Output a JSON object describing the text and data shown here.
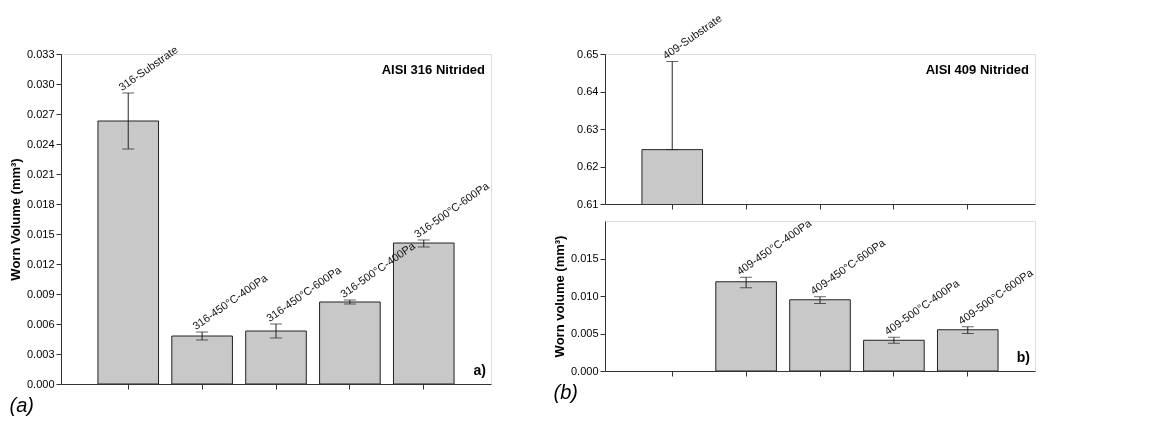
{
  "chart_data": [
    {
      "type": "bar",
      "title": "AISI 316 Nitrided",
      "ylabel": "Worn Volume (mm³)",
      "categories": [
        null,
        null,
        null,
        null,
        null
      ],
      "values": [
        0.0263,
        0.0048,
        0.0053,
        0.0082,
        0.0141
      ],
      "errors": [
        [
          0.0235,
          0.0291
        ],
        [
          0.0044,
          0.0052
        ],
        [
          0.0046,
          0.006
        ],
        [
          0.008,
          0.0084
        ],
        [
          0.0137,
          0.0144
        ]
      ],
      "color": "#c8c8c8",
      "ylim": [
        0,
        0.033
      ],
      "yticks": [
        {
          "value": 0,
          "label": "0.000"
        },
        {
          "value": 0.003,
          "label": "0.003"
        },
        {
          "value": 0.006,
          "label": "0.006"
        },
        {
          "value": 0.009,
          "label": "0.009"
        },
        {
          "value": 0.012,
          "label": "0.012"
        },
        {
          "value": 0.015,
          "label": "0.015"
        },
        {
          "value": 0.018,
          "label": "0.018"
        },
        {
          "value": 0.021,
          "label": "0.021"
        },
        {
          "value": 0.024,
          "label": "0.024"
        },
        {
          "value": 0.027,
          "label": "0.027"
        },
        {
          "value": 0.03,
          "label": "0.030"
        },
        {
          "value": 0.033,
          "label": "0.033"
        }
      ],
      "tick_labels": "y",
      "grid": false,
      "annotations": [
        "316-Substrate",
        "316-450°C-400Pa",
        "316-450°C-600Pa",
        "316-500°C-400Pa",
        "316-500°C-600Pa",
        "a)",
        "(a)"
      ]
    },
    {
      "type": "bar",
      "title": "AISI 409 Nitrided",
      "categories": [
        null,
        null,
        null,
        null,
        null
      ],
      "values": [
        0.6245,
        null,
        null,
        null,
        null
      ],
      "errors": [
        [
          0.6245,
          0.648
        ],
        null,
        null,
        null,
        null
      ],
      "color": "#c8c8c8",
      "ylim": [
        0.61,
        0.65
      ],
      "yticks": [
        0.61,
        0.62,
        0.63,
        0.64,
        0.65
      ],
      "tick_labels": "y",
      "grid": false,
      "annotations": [
        "409-Substrate"
      ]
    },
    {
      "type": "bar",
      "ylabel": "Worn volume (mm³)",
      "categories": [
        null,
        null,
        null,
        null,
        null
      ],
      "values": [
        null,
        0.0119,
        0.0095,
        0.0041,
        0.0055
      ],
      "errors": [
        null,
        [
          0.0111,
          0.0125
        ],
        [
          0.009,
          0.0099
        ],
        [
          0.0037,
          0.0045
        ],
        [
          0.005,
          0.0059
        ]
      ],
      "color": "#c8c8c8",
      "ylim": [
        0,
        0.02
      ],
      "yticks": [
        {
          "value": 0,
          "label": "0.000"
        },
        {
          "value": 0.005,
          "label": "0.005"
        },
        {
          "value": 0.01,
          "label": "0.010"
        },
        {
          "value": 0.015,
          "label": "0.015"
        }
      ],
      "tick_labels": "y",
      "grid": false,
      "annotations": [
        "409-450°C-400Pa",
        "409-450°C-600Pa",
        "409-500°C-400Pa",
        "409-500°C-600Pa",
        "b)",
        "(b)"
      ]
    }
  ]
}
